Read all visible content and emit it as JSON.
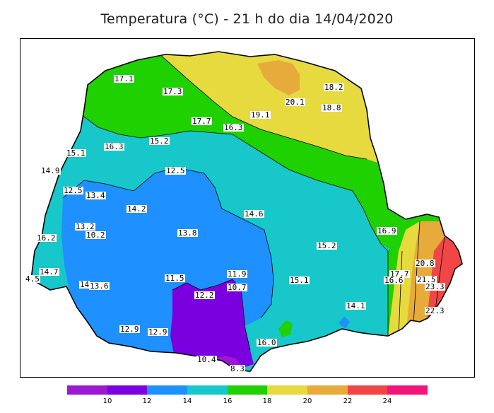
{
  "title": "Temperatura (°C) - 21 h do dia 14/04/2020",
  "map": {
    "region": "Paraná",
    "color_scale": [
      {
        "range": [
          8,
          10
        ],
        "color": "#9d18d1"
      },
      {
        "range": [
          10,
          12
        ],
        "color": "#7a00e0"
      },
      {
        "range": [
          12,
          14
        ],
        "color": "#1e90ff"
      },
      {
        "range": [
          14,
          16
        ],
        "color": "#18c7c9"
      },
      {
        "range": [
          16,
          18
        ],
        "color": "#1fd100"
      },
      {
        "range": [
          18,
          20
        ],
        "color": "#e6da3f"
      },
      {
        "range": [
          20,
          22
        ],
        "color": "#e6ab3a"
      },
      {
        "range": [
          22,
          24
        ],
        "color": "#f24646"
      },
      {
        "range": [
          24,
          26
        ],
        "color": "#f2147a"
      }
    ],
    "stations": [
      "17.1",
      "17.3",
      "20.1",
      "18.2",
      "18.8",
      "19.1",
      "17.7",
      "16.3",
      "16.3",
      "15.2",
      "15.1",
      "14.9",
      "12.5",
      "12.5",
      "13.4",
      "14.2",
      "14.6",
      "13.2",
      "10.2",
      "13.8",
      "16.2",
      "16.9",
      "15.2",
      "14.7",
      "4.5",
      "14",
      "13.6",
      "11.5",
      "11.9",
      "10.7",
      "12.2",
      "15.1",
      "17.7",
      "16.6",
      "20.8",
      "21.5",
      "23.3",
      "14.1",
      "22.3",
      "12.9",
      "12.9",
      "16.0",
      "10.4",
      "8.3"
    ]
  },
  "legend": {
    "tick_labels": [
      "10",
      "12",
      "14",
      "16",
      "18",
      "20",
      "22",
      "24"
    ]
  }
}
